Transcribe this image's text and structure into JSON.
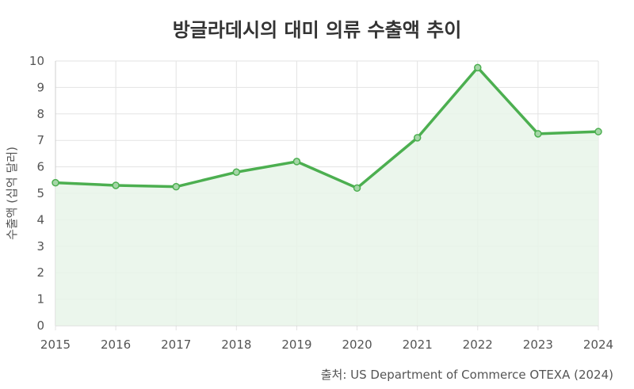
{
  "chart_data": {
    "type": "area",
    "title": "방글라데시의 대미 의류 수출액 추이",
    "ylabel": "수출액 (십억 달러)",
    "xlabel": "",
    "x": [
      "2015",
      "2016",
      "2017",
      "2018",
      "2019",
      "2020",
      "2021",
      "2022",
      "2023",
      "2024"
    ],
    "series": [
      {
        "values": [
          5.4,
          5.3,
          5.25,
          5.8,
          6.2,
          5.2,
          7.1,
          9.75,
          7.25,
          7.33
        ]
      }
    ],
    "ylim": [
      0,
      10
    ],
    "yticks": [
      "0",
      "1",
      "2",
      "3",
      "4",
      "5",
      "6",
      "7",
      "8",
      "9",
      "10"
    ],
    "grid": true,
    "line_color": "#4CAF50",
    "fill_color": "#E8F5E9",
    "source": "출처: US Department of Commerce OTEXA (2024)"
  }
}
